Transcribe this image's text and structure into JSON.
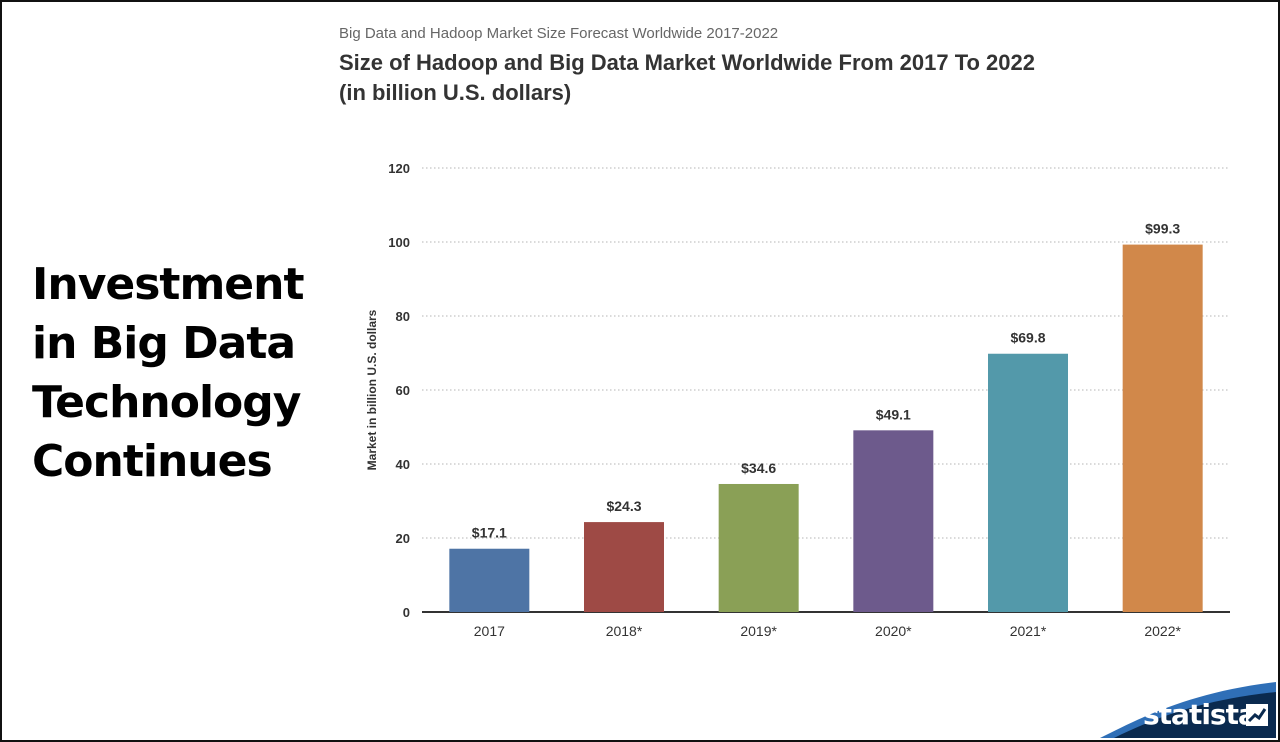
{
  "slide": {
    "title_lines": [
      "Investment",
      "in Big Data",
      "Technology",
      "Continues"
    ]
  },
  "chart_data": {
    "type": "bar",
    "subtitle": "Big Data and Hadoop Market Size Forecast Worldwide 2017-2022",
    "title_lines": [
      "Size of Hadoop and Big Data Market Worldwide From 2017 To 2022",
      "(in billion U.S. dollars)"
    ],
    "ylabel": "Market in billion U.S. dollars",
    "xlabel": "",
    "categories": [
      "2017",
      "2018*",
      "2019*",
      "2020*",
      "2021*",
      "2022*"
    ],
    "values": [
      17.1,
      24.3,
      34.6,
      49.1,
      69.8,
      99.3
    ],
    "value_labels": [
      "$17.1",
      "$24.3",
      "$34.6",
      "$49.1",
      "$69.8",
      "$99.3"
    ],
    "colors": [
      "#4e74a5",
      "#9e4a45",
      "#8aa056",
      "#6d5a8c",
      "#5399aa",
      "#d1884a"
    ],
    "ylim": [
      0,
      120
    ],
    "yticks": [
      0,
      20,
      40,
      60,
      80,
      100,
      120
    ],
    "grid": true,
    "legend": "none"
  },
  "brand": {
    "name": "statista",
    "icon": "statista-logo-icon",
    "colors": {
      "dark": "#0a2a4f",
      "light": "#2f6fb7"
    }
  }
}
